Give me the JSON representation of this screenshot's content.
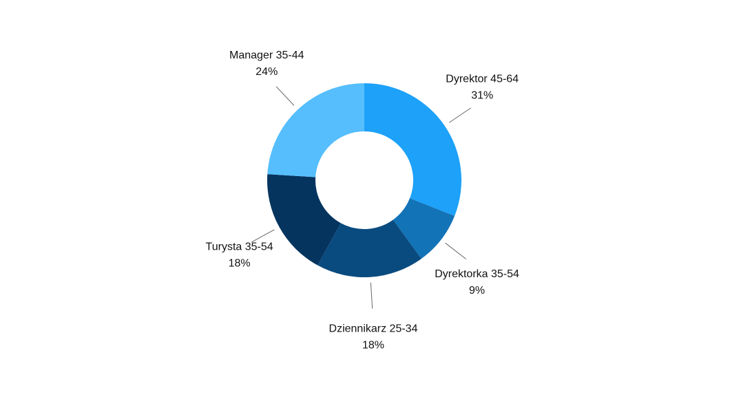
{
  "chart_data": {
    "type": "pie",
    "donut": true,
    "start": "top, clockwise",
    "slices": [
      {
        "label": "Dyrektor 45-64",
        "value_text": "31%",
        "value": 31,
        "color": "#1da1f9"
      },
      {
        "label": "Dyrektorka 35-54",
        "value_text": "9%",
        "value": 9,
        "color": "#1373b7"
      },
      {
        "label": "Dziennikarz 25-34",
        "value_text": "18%",
        "value": 18,
        "color": "#0a4b7f"
      },
      {
        "label": "Turysta 35-54",
        "value_text": "18%",
        "value": 18,
        "color": "#05345f"
      },
      {
        "label": "Manager 35-44",
        "value_text": "24%",
        "value": 24,
        "color": "#56befd"
      }
    ]
  }
}
